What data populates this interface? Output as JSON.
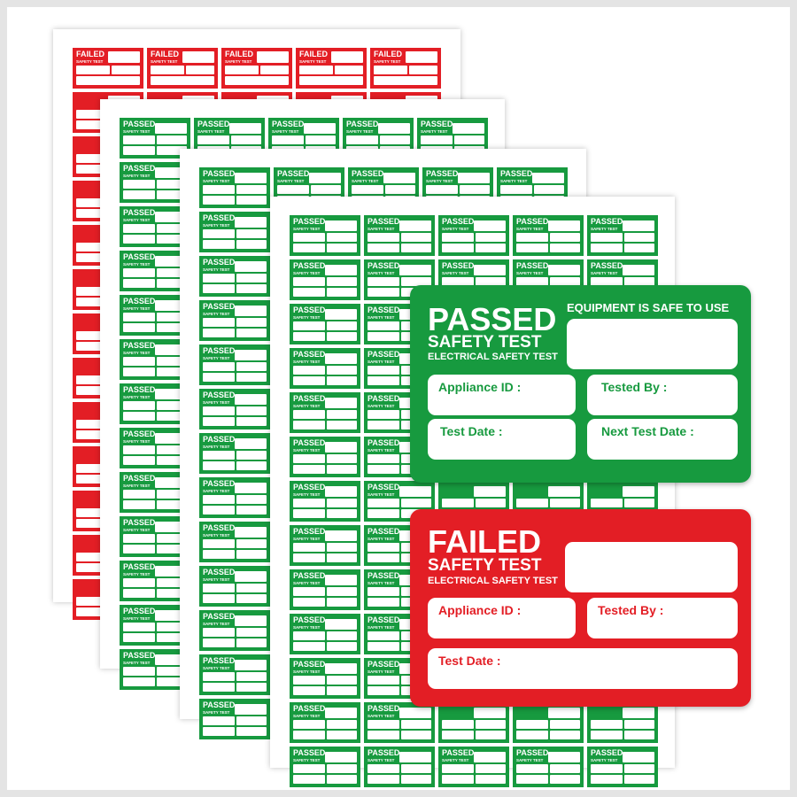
{
  "colors": {
    "passed_green": "#179a3f",
    "failed_red": "#e31e25",
    "background_border": "#e4e4e4"
  },
  "small_labels": {
    "passed_title": "PASSED",
    "failed_title": "FAILED",
    "subtitle": "SAFETY TEST"
  },
  "passed_label": {
    "title": "PASSED",
    "subtitle": "SAFETY TEST",
    "caption": "ELECTRICAL SAFETY TEST",
    "notice": "EQUIPMENT IS SAFE TO USE",
    "fields": [
      "Appliance ID :",
      "Tested By :",
      "Test Date :",
      "Next Test Date :"
    ]
  },
  "failed_label": {
    "title": "FAILED",
    "subtitle": "SAFETY TEST",
    "caption": "ELECTRICAL SAFETY TEST",
    "fields": [
      "Appliance ID :",
      "Tested By :",
      "Test Date :"
    ]
  }
}
